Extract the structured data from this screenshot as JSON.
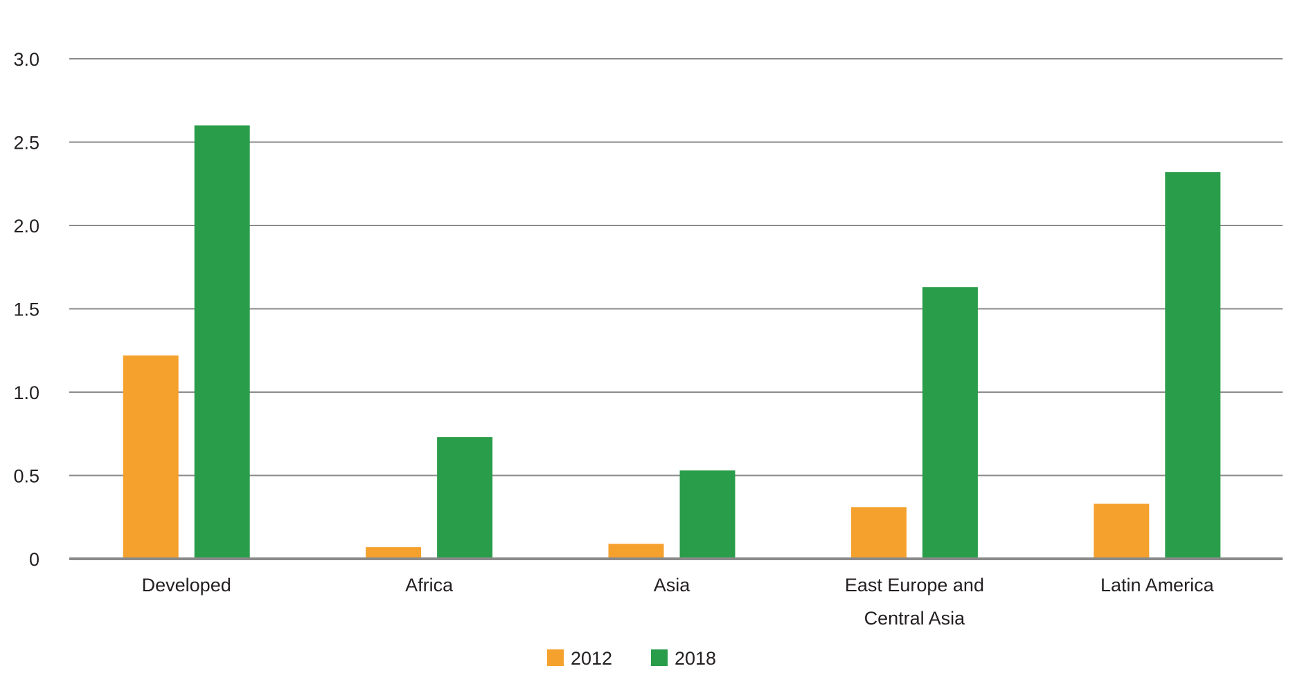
{
  "chart_data": {
    "type": "bar",
    "categories": [
      "Developed",
      "Africa",
      "Asia",
      "East Europe and Central Asia",
      "Latin America"
    ],
    "category_lines": [
      [
        "Developed"
      ],
      [
        "Africa"
      ],
      [
        "Asia"
      ],
      [
        "East Europe and",
        "Central Asia"
      ],
      [
        "Latin America"
      ]
    ],
    "series": [
      {
        "name": "2012",
        "color": "#f5a12e",
        "values": [
          1.22,
          0.07,
          0.09,
          0.31,
          0.33
        ]
      },
      {
        "name": "2018",
        "color": "#2a9d4a",
        "values": [
          2.6,
          0.73,
          0.53,
          1.63,
          2.32
        ]
      }
    ],
    "yticks": [
      "0",
      "0.5",
      "1.0",
      "1.5",
      "2.0",
      "2.5",
      "3.0"
    ],
    "ylim": [
      0,
      3
    ],
    "grid": true,
    "legend_position": "bottom-center",
    "title": "",
    "xlabel": "",
    "ylabel": ""
  }
}
